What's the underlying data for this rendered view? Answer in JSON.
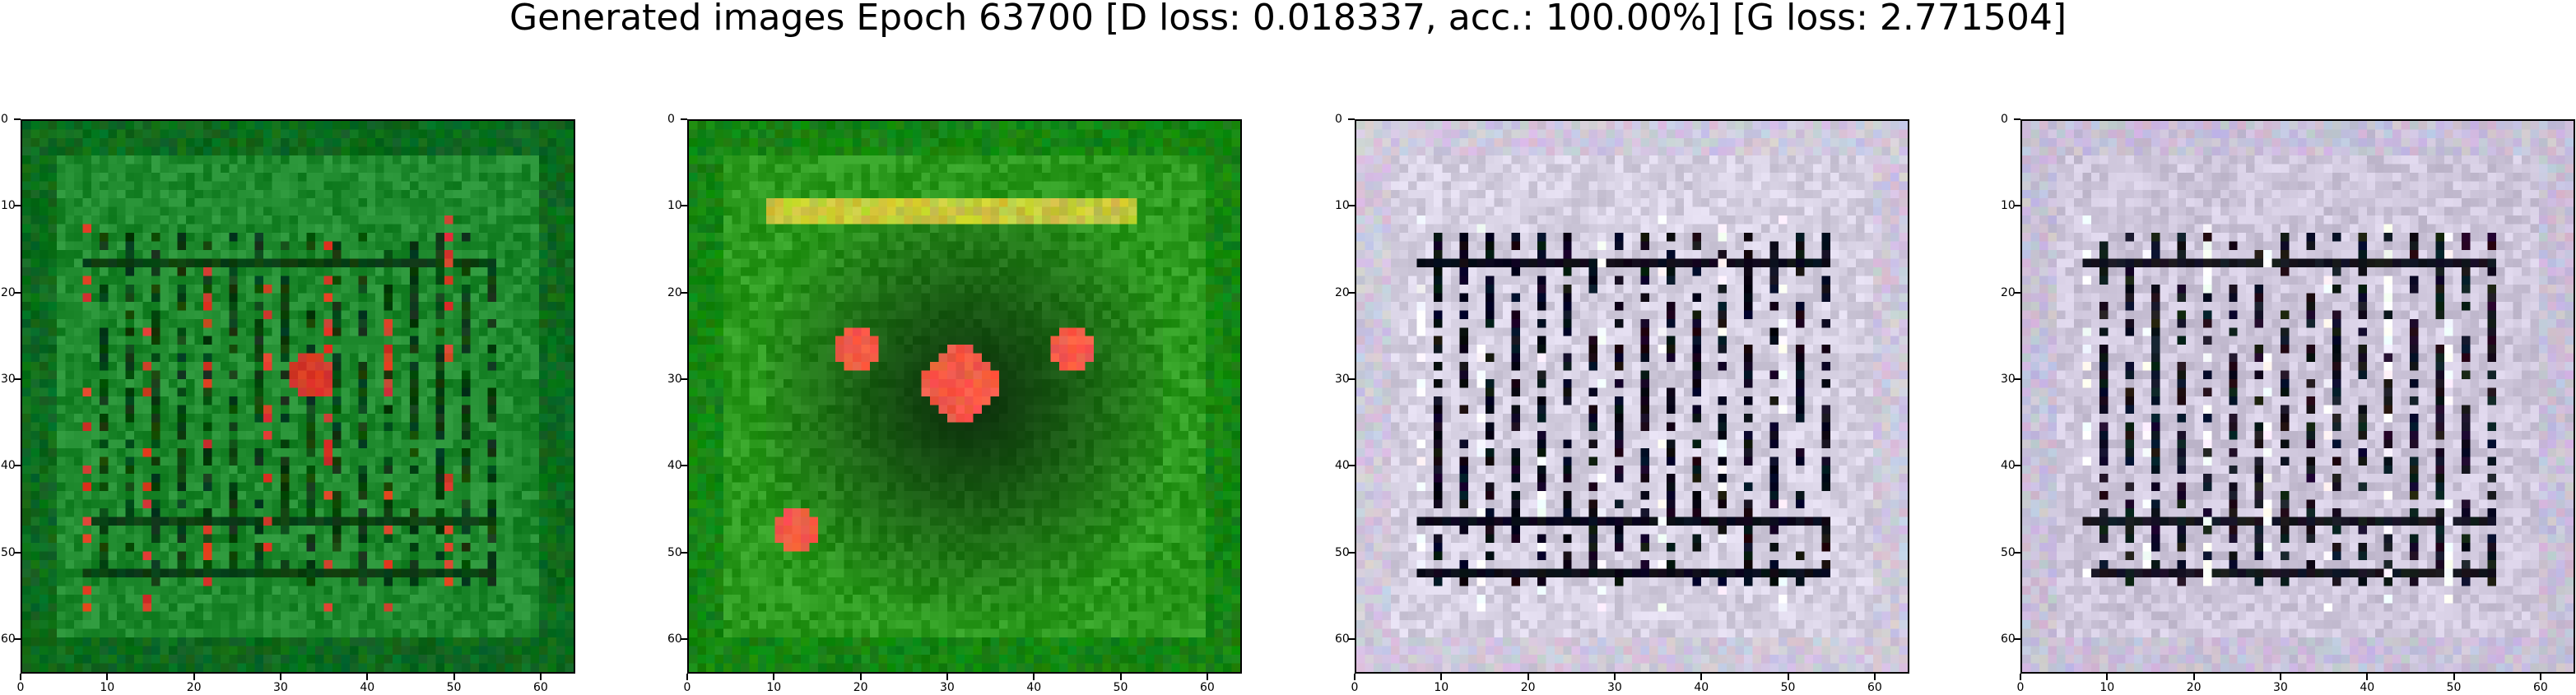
{
  "figure": {
    "title": "Generated images Epoch 63700 [D loss: 0.018337, acc.: 100.00%] [G loss: 2.771504]"
  },
  "chart_data": [
    {
      "type": "heatmap",
      "title": "",
      "xlabel": "",
      "ylabel": "",
      "xlim": [
        0,
        64
      ],
      "ylim": [
        64,
        0
      ],
      "x_ticks": [
        "0",
        "10",
        "20",
        "30",
        "40",
        "50",
        "60"
      ],
      "y_ticks": [
        "0",
        "10",
        "20",
        "30",
        "40",
        "50",
        "60"
      ],
      "grid": false,
      "legend": "none",
      "dominant_color": "#1f8a2e",
      "frame_color": "#0d6a1e",
      "grid_color": "#0b3f12",
      "highlight_color": "#d63a2a"
    },
    {
      "type": "heatmap",
      "title": "",
      "xlabel": "",
      "ylabel": "",
      "xlim": [
        0,
        64
      ],
      "ylim": [
        64,
        0
      ],
      "x_ticks": [
        "0",
        "10",
        "20",
        "30",
        "40",
        "50",
        "60"
      ],
      "y_ticks": [
        "0",
        "10",
        "20",
        "30",
        "40",
        "50",
        "60"
      ],
      "grid": false,
      "legend": "none",
      "dominant_color": "#2c9a1e",
      "frame_color": "#158512",
      "center_color": "#0b2a0b",
      "highlight_color": "#f25a46"
    },
    {
      "type": "heatmap",
      "title": "",
      "xlabel": "",
      "ylabel": "",
      "xlim": [
        0,
        64
      ],
      "ylim": [
        64,
        0
      ],
      "x_ticks": [
        "0",
        "10",
        "20",
        "30",
        "40",
        "50",
        "60"
      ],
      "y_ticks": [
        "0",
        "10",
        "20",
        "30",
        "40",
        "50",
        "60"
      ],
      "grid": false,
      "legend": "none",
      "dominant_color": "#d6d0e2",
      "frame_color": "#cfc8dc",
      "grid_color": "#0b0b1a",
      "highlight_color": "#ffffff"
    },
    {
      "type": "heatmap",
      "title": "",
      "xlabel": "",
      "ylabel": "",
      "xlim": [
        0,
        64
      ],
      "ylim": [
        64,
        0
      ],
      "x_ticks": [
        "0",
        "10",
        "20",
        "30",
        "40",
        "50",
        "60"
      ],
      "y_ticks": [
        "0",
        "10",
        "20",
        "30",
        "40",
        "50",
        "60"
      ],
      "grid": false,
      "legend": "none",
      "dominant_color": "#cfc7dc",
      "frame_color": "#c8c0d8",
      "grid_color": "#151520",
      "highlight_color": "#ffffff"
    }
  ]
}
